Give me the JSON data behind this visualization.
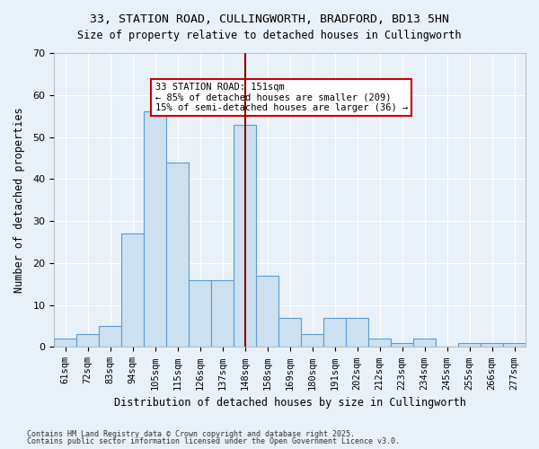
{
  "title_line1": "33, STATION ROAD, CULLINGWORTH, BRADFORD, BD13 5HN",
  "title_line2": "Size of property relative to detached houses in Cullingworth",
  "xlabel": "Distribution of detached houses by size in Cullingworth",
  "ylabel": "Number of detached properties",
  "categories": [
    "61sqm",
    "72sqm",
    "83sqm",
    "94sqm",
    "105sqm",
    "115sqm",
    "126sqm",
    "137sqm",
    "148sqm",
    "158sqm",
    "169sqm",
    "180sqm",
    "191sqm",
    "202sqm",
    "212sqm",
    "223sqm",
    "234sqm",
    "245sqm",
    "255sqm",
    "266sqm",
    "277sqm"
  ],
  "values": [
    2,
    3,
    5,
    27,
    56,
    44,
    16,
    16,
    53,
    17,
    7,
    3,
    7,
    7,
    2,
    1,
    2,
    0,
    1,
    1,
    1
  ],
  "bar_color": "#cce0f0",
  "bar_edge_color": "#5b9bd5",
  "background_color": "#e8f0f8",
  "grid_color": "#ffffff",
  "vline_x": 8,
  "vline_color": "#8b0000",
  "annotation_text": "33 STATION ROAD: 151sqm\n← 85% of detached houses are smaller (209)\n15% of semi-detached houses are larger (36) →",
  "annotation_box_color": "#ffffff",
  "annotation_box_edge": "#cc0000",
  "ylim": [
    0,
    70
  ],
  "yticks": [
    0,
    10,
    20,
    30,
    40,
    50,
    60,
    70
  ],
  "footnote1": "Contains HM Land Registry data © Crown copyright and database right 2025.",
  "footnote2": "Contains public sector information licensed under the Open Government Licence v3.0."
}
